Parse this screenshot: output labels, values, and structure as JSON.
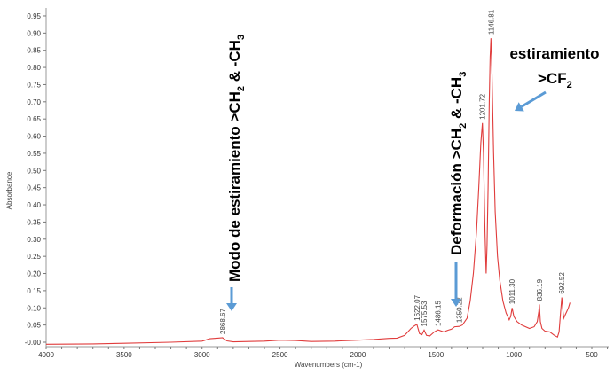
{
  "chart_data": {
    "type": "line",
    "xlabel": "Wavenumbers (cm-1)",
    "ylabel": "Absorbance",
    "xlim": [
      4000,
      400
    ],
    "x_reversed": true,
    "ylim": [
      -0.02,
      0.97
    ],
    "grid": false,
    "line_color": "#e03c3c",
    "arrow_color": "#5b9bd5",
    "x_ticks": [
      4000,
      3500,
      3000,
      2500,
      2000,
      1500,
      1000,
      500
    ],
    "y_ticks": [
      "-0.00",
      "0.05",
      "0.10",
      "0.15",
      "0.20",
      "0.25",
      "0.30",
      "0.35",
      "0.40",
      "0.45",
      "0.50",
      "0.55",
      "0.60",
      "0.65",
      "0.70",
      "0.75",
      "0.80",
      "0.85",
      "0.90",
      "0.95"
    ],
    "series": [
      {
        "x": [
          4000,
          3700,
          3500,
          3200,
          3000,
          2950,
          2900,
          2868.67,
          2840,
          2800,
          2600,
          2500,
          2400,
          2300,
          2150,
          2000,
          1900,
          1800,
          1750,
          1700,
          1660,
          1640,
          1622.07,
          1605,
          1590,
          1575.53,
          1560,
          1540,
          1510,
          1486.15,
          1450,
          1420,
          1400,
          1380,
          1350.22,
          1330,
          1300,
          1280,
          1260,
          1240,
          1225,
          1212,
          1201.72,
          1195,
          1185,
          1178,
          1172,
          1165,
          1158,
          1152,
          1146.81,
          1140,
          1130,
          1120,
          1105,
          1090,
          1070,
          1050,
          1030,
          1020,
          1011.3,
          1000,
          980,
          950,
          900,
          870,
          850,
          840,
          836.19,
          830,
          820,
          800,
          770,
          740,
          720,
          710,
          700,
          692.52,
          685,
          680,
          670,
          660,
          650,
          640
        ],
        "y": [
          -0.006,
          -0.005,
          -0.003,
          0.0,
          0.003,
          0.01,
          0.012,
          0.013,
          0.004,
          0.001,
          0.003,
          0.006,
          0.005,
          0.002,
          0.003,
          0.006,
          0.008,
          0.011,
          0.012,
          0.02,
          0.04,
          0.047,
          0.052,
          0.025,
          0.022,
          0.035,
          0.02,
          0.018,
          0.03,
          0.036,
          0.03,
          0.035,
          0.038,
          0.045,
          0.046,
          0.05,
          0.07,
          0.12,
          0.2,
          0.32,
          0.45,
          0.58,
          0.638,
          0.55,
          0.32,
          0.2,
          0.28,
          0.45,
          0.7,
          0.83,
          0.885,
          0.78,
          0.55,
          0.38,
          0.25,
          0.18,
          0.12,
          0.085,
          0.065,
          0.075,
          0.1,
          0.075,
          0.06,
          0.05,
          0.04,
          0.045,
          0.06,
          0.09,
          0.11,
          0.06,
          0.04,
          0.032,
          0.03,
          0.02,
          0.015,
          0.03,
          0.09,
          0.13,
          0.09,
          0.07,
          0.08,
          0.09,
          0.1,
          0.115
        ]
      }
    ],
    "peak_labels": [
      {
        "x": 2868.67,
        "y": 0.013,
        "label": "2868.67"
      },
      {
        "x": 1622.07,
        "y": 0.052,
        "label": "1622.07"
      },
      {
        "x": 1575.53,
        "y": 0.035,
        "label": "1575.53"
      },
      {
        "x": 1486.15,
        "y": 0.036,
        "label": "1486.15"
      },
      {
        "x": 1350.22,
        "y": 0.046,
        "label": "1350.22"
      },
      {
        "x": 1201.72,
        "y": 0.638,
        "label": "1201.72"
      },
      {
        "x": 1146.81,
        "y": 0.885,
        "label": "1146.81"
      },
      {
        "x": 1011.3,
        "y": 0.1,
        "label": "1011.30"
      },
      {
        "x": 836.19,
        "y": 0.11,
        "label": "836.19"
      },
      {
        "x": 692.52,
        "y": 0.13,
        "label": "692.52"
      }
    ],
    "annotations": {
      "ch_stretch": {
        "a": "Modo de estiramiento  >CH",
        "s1": "2",
        "b": " & -CH",
        "s2": "3"
      },
      "ch_deform": {
        "a": "Deformación >CH",
        "s1": "2",
        "b": " & -CH",
        "s2": "3"
      },
      "cf2_line1": "estiramiento",
      "cf2_a": ">CF",
      "cf2_s": "2"
    }
  }
}
